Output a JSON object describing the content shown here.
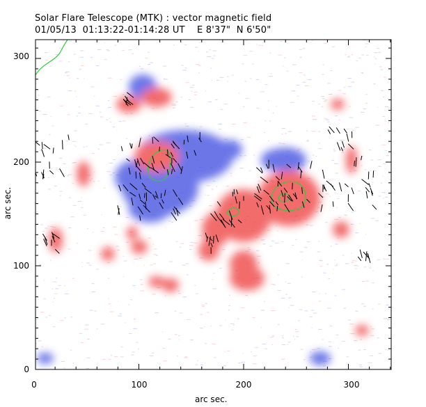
{
  "header": {
    "line1": "Solar Flare Telescope (MTK) : vector magnetic field",
    "line2": "01/05/13  01:13:22-01:14:28 UT    E 8'37\"  N 6'50\""
  },
  "axes": {
    "xlabel": "arc sec.",
    "ylabel": "arc sec.",
    "xticks": [
      "0",
      "100",
      "200",
      "300"
    ],
    "yticks": [
      "0",
      "100",
      "200",
      "300"
    ],
    "xlim": [
      0,
      340
    ],
    "ylim": [
      0,
      318
    ]
  },
  "colors": {
    "positive": "#ee3b3b",
    "negative": "#3b48e0",
    "contour": "#2ecc40",
    "vector": "#000000"
  }
}
